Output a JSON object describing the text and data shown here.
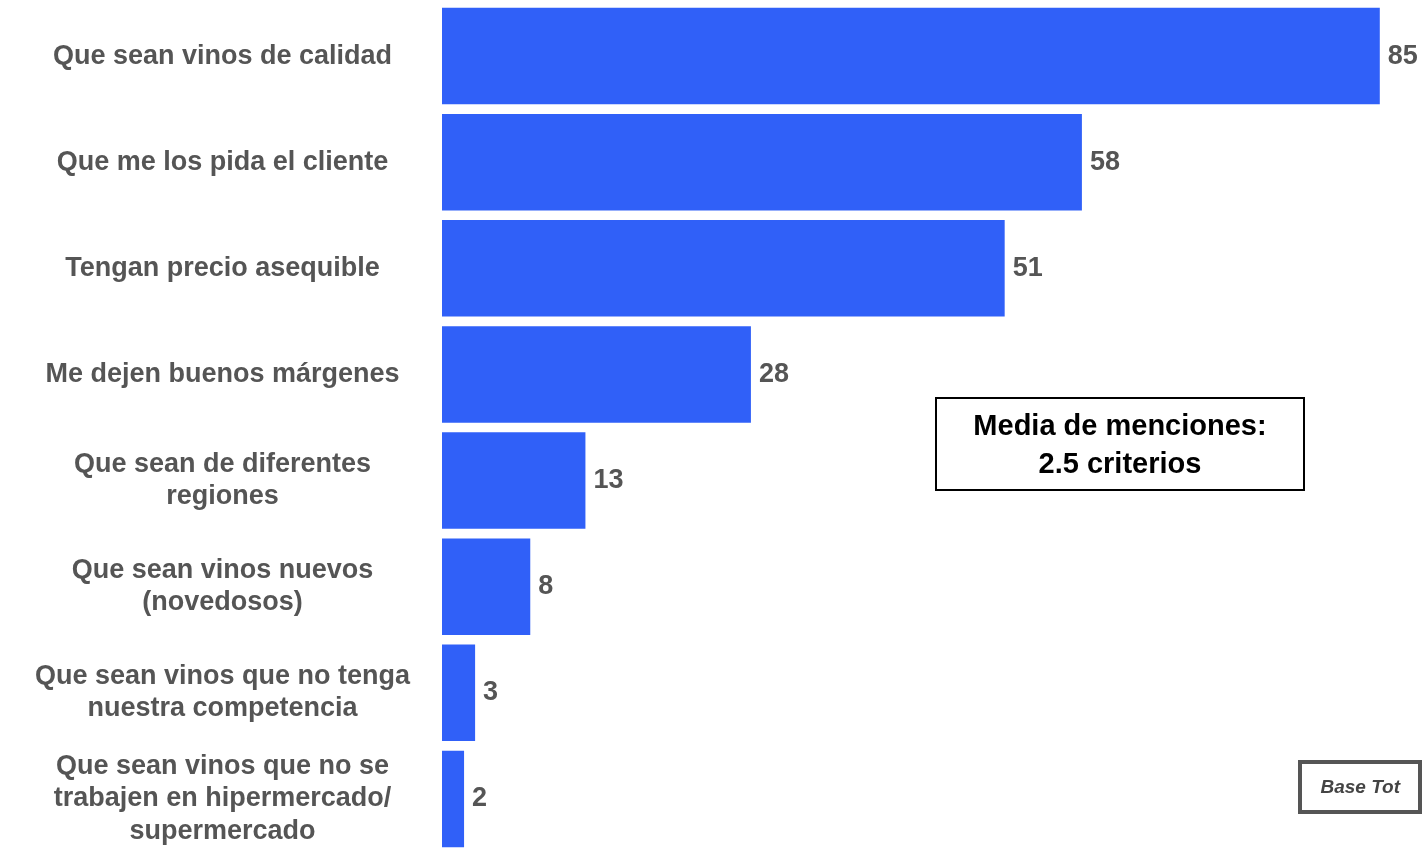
{
  "chart_data": {
    "type": "bar",
    "orientation": "horizontal",
    "categories": [
      "Que sean vinos de calidad",
      "Que me los pida el cliente",
      "Tengan precio asequible",
      "Me dejen buenos márgenes",
      "Que sean de diferentes regiones",
      "Que sean vinos nuevos (novedosos)",
      "Que sean vinos que no tenga nuestra competencia",
      "Que sean vinos que no se trabajen en hipermercado/ supermercado"
    ],
    "values": [
      85,
      58,
      51,
      28,
      13,
      8,
      3,
      2
    ],
    "color": "#3060f8",
    "data_labels": true,
    "legend": false,
    "annotations": [
      "Media de menciones: 2.5 criterios",
      "Base Tot"
    ]
  }
}
